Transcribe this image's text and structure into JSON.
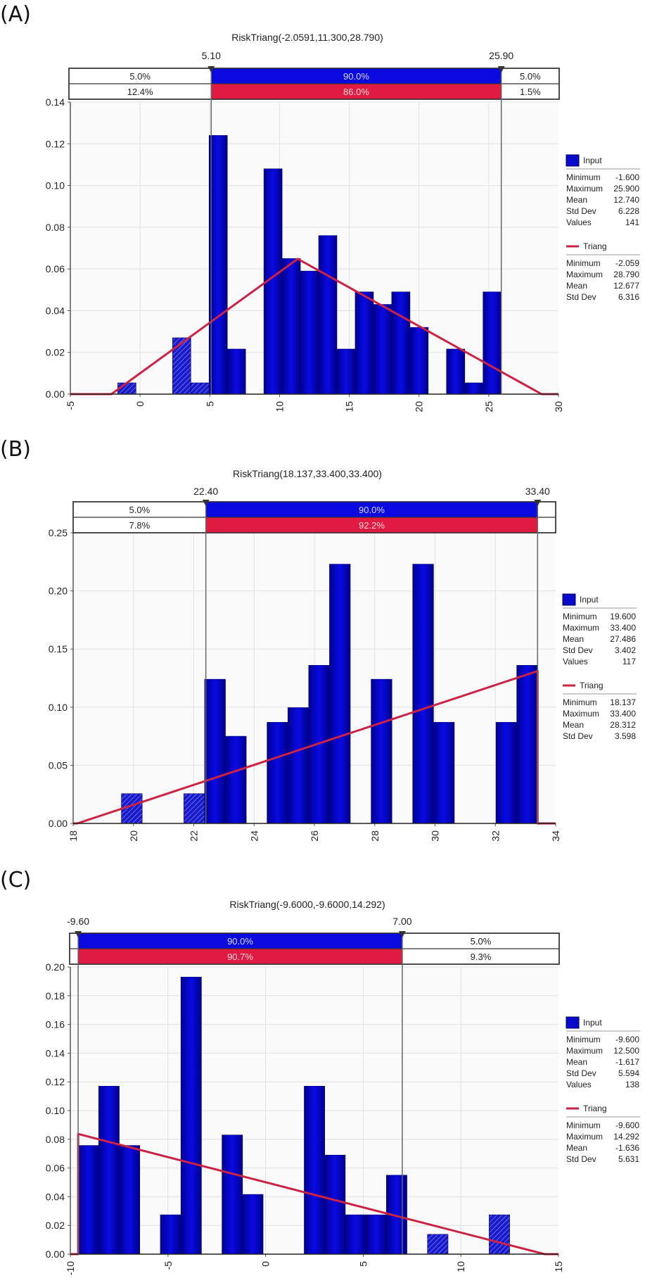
{
  "colors": {
    "bar": "#0a0acc",
    "bar_dark": "#000080",
    "triang": "#cc2244",
    "red_band": "#e01a40",
    "blue_band": "#0a0ae0",
    "grid": "#e2e2e2",
    "plot_bg": "#fafafa"
  },
  "chart_data": [
    {
      "panel": "(A)",
      "type": "bar",
      "title": "RiskTriang(-2.0591,11.300,28.790)",
      "xlim": [
        -5,
        30
      ],
      "xticks": [
        -5,
        0,
        5,
        10,
        15,
        20,
        25,
        30
      ],
      "ylim": [
        0,
        0.14
      ],
      "yticks": [
        "0.00",
        "0.02",
        "0.04",
        "0.06",
        "0.08",
        "0.10",
        "0.12",
        "0.14"
      ],
      "grid": true,
      "markers": {
        "left": {
          "value": 5.1,
          "label": "5.10"
        },
        "right": {
          "value": 25.9,
          "label": "25.90"
        }
      },
      "band_input": [
        "5.0%",
        "90.0%",
        "5.0%"
      ],
      "band_fit": [
        "12.4%",
        "86.0%",
        "1.5%"
      ],
      "histogram": {
        "bin_start": -1.6,
        "bin_width": 1.3095,
        "values": [
          0.0054,
          0,
          0,
          0.027,
          0.0054,
          0.124,
          0.0216,
          0,
          0.108,
          0.065,
          0.059,
          0.076,
          0.0216,
          0.049,
          0.043,
          0.049,
          0.032,
          0,
          0.0216,
          0.0054,
          0.049
        ]
      },
      "triang": {
        "min": -2.0591,
        "mode": 11.3,
        "max": 28.79
      },
      "legend": {
        "input": {
          "label": "Input",
          "rows": [
            [
              "Minimum",
              "-1.600"
            ],
            [
              "Maximum",
              "25.900"
            ],
            [
              "Mean",
              "12.740"
            ],
            [
              "Std Dev",
              "6.228"
            ],
            [
              "Values",
              "141"
            ]
          ]
        },
        "fit": {
          "label": "Triang",
          "rows": [
            [
              "Minimum",
              "-2.059"
            ],
            [
              "Maximum",
              "28.790"
            ],
            [
              "Mean",
              "12.677"
            ],
            [
              "Std Dev",
              "6.316"
            ]
          ]
        }
      }
    },
    {
      "panel": "(B)",
      "type": "bar",
      "title": "RiskTriang(18.137,33.400,33.400)",
      "xlim": [
        18,
        34
      ],
      "xticks": [
        18,
        20,
        22,
        24,
        26,
        28,
        30,
        32,
        34
      ],
      "ylim": [
        0,
        0.25
      ],
      "yticks": [
        "0.00",
        "0.05",
        "0.10",
        "0.15",
        "0.20",
        "0.25"
      ],
      "grid": true,
      "markers": {
        "left": {
          "value": 22.4,
          "label": "22.40"
        },
        "right": {
          "value": 33.4,
          "label": "33.40"
        }
      },
      "band_input": [
        "5.0%",
        "90.0%",
        ""
      ],
      "band_fit": [
        "7.8%",
        "92.2%",
        ""
      ],
      "histogram": {
        "bin_start": 19.6,
        "bin_width": 0.69,
        "values": [
          0.0256,
          0,
          0,
          0.0256,
          0.124,
          0.075,
          0,
          0.087,
          0.0996,
          0.136,
          0.223,
          0,
          0.124,
          0,
          0.223,
          0.087,
          0,
          0,
          0.087,
          0.136
        ]
      },
      "triang": {
        "min": 18.137,
        "mode": 33.4,
        "max": 33.4
      },
      "legend": {
        "input": {
          "label": "Input",
          "rows": [
            [
              "Minimum",
              "19.600"
            ],
            [
              "Maximum",
              "33.400"
            ],
            [
              "Mean",
              "27.486"
            ],
            [
              "Std Dev",
              "3.402"
            ],
            [
              "Values",
              "117"
            ]
          ]
        },
        "fit": {
          "label": "Triang",
          "rows": [
            [
              "Minimum",
              "18.137"
            ],
            [
              "Maximum",
              "33.400"
            ],
            [
              "Mean",
              "28.312"
            ],
            [
              "Std Dev",
              "3.598"
            ]
          ]
        }
      }
    },
    {
      "panel": "(C)",
      "type": "bar",
      "title": "RiskTriang(-9.6000,-9.6000,14.292)",
      "xlim": [
        -10,
        15
      ],
      "xticks": [
        -10,
        -5,
        0,
        5,
        10,
        15
      ],
      "ylim": [
        0,
        0.2
      ],
      "yticks": [
        "0.00",
        "0.02",
        "0.04",
        "0.06",
        "0.08",
        "0.10",
        "0.12",
        "0.14",
        "0.16",
        "0.18",
        "0.20"
      ],
      "grid": true,
      "markers": {
        "left": {
          "value": -9.6,
          "label": "-9.60"
        },
        "right": {
          "value": 7.0,
          "label": "7.00"
        }
      },
      "band_input": [
        "",
        "90.0%",
        "5.0%"
      ],
      "band_fit": [
        "",
        "90.7%",
        "9.3%"
      ],
      "histogram": {
        "bin_start": -9.6,
        "bin_width": 1.0524,
        "values": [
          0.0757,
          0.117,
          0.0757,
          0,
          0.0274,
          0.193,
          0,
          0.083,
          0.0416,
          0,
          0,
          0.117,
          0.069,
          0.0274,
          0.0274,
          0.055,
          0,
          0.0138,
          0,
          0,
          0.0274
        ]
      },
      "triang": {
        "min": -9.6,
        "mode": -9.6,
        "max": 14.292
      },
      "legend": {
        "input": {
          "label": "Input",
          "rows": [
            [
              "Minimum",
              "-9.600"
            ],
            [
              "Maximum",
              "12.500"
            ],
            [
              "Mean",
              "-1.617"
            ],
            [
              "Std Dev",
              "5.594"
            ],
            [
              "Values",
              "138"
            ]
          ]
        },
        "fit": {
          "label": "Triang",
          "rows": [
            [
              "Minimum",
              "-9.600"
            ],
            [
              "Maximum",
              "14.292"
            ],
            [
              "Mean",
              "-1.636"
            ],
            [
              "Std Dev",
              "5.631"
            ]
          ]
        }
      }
    }
  ]
}
